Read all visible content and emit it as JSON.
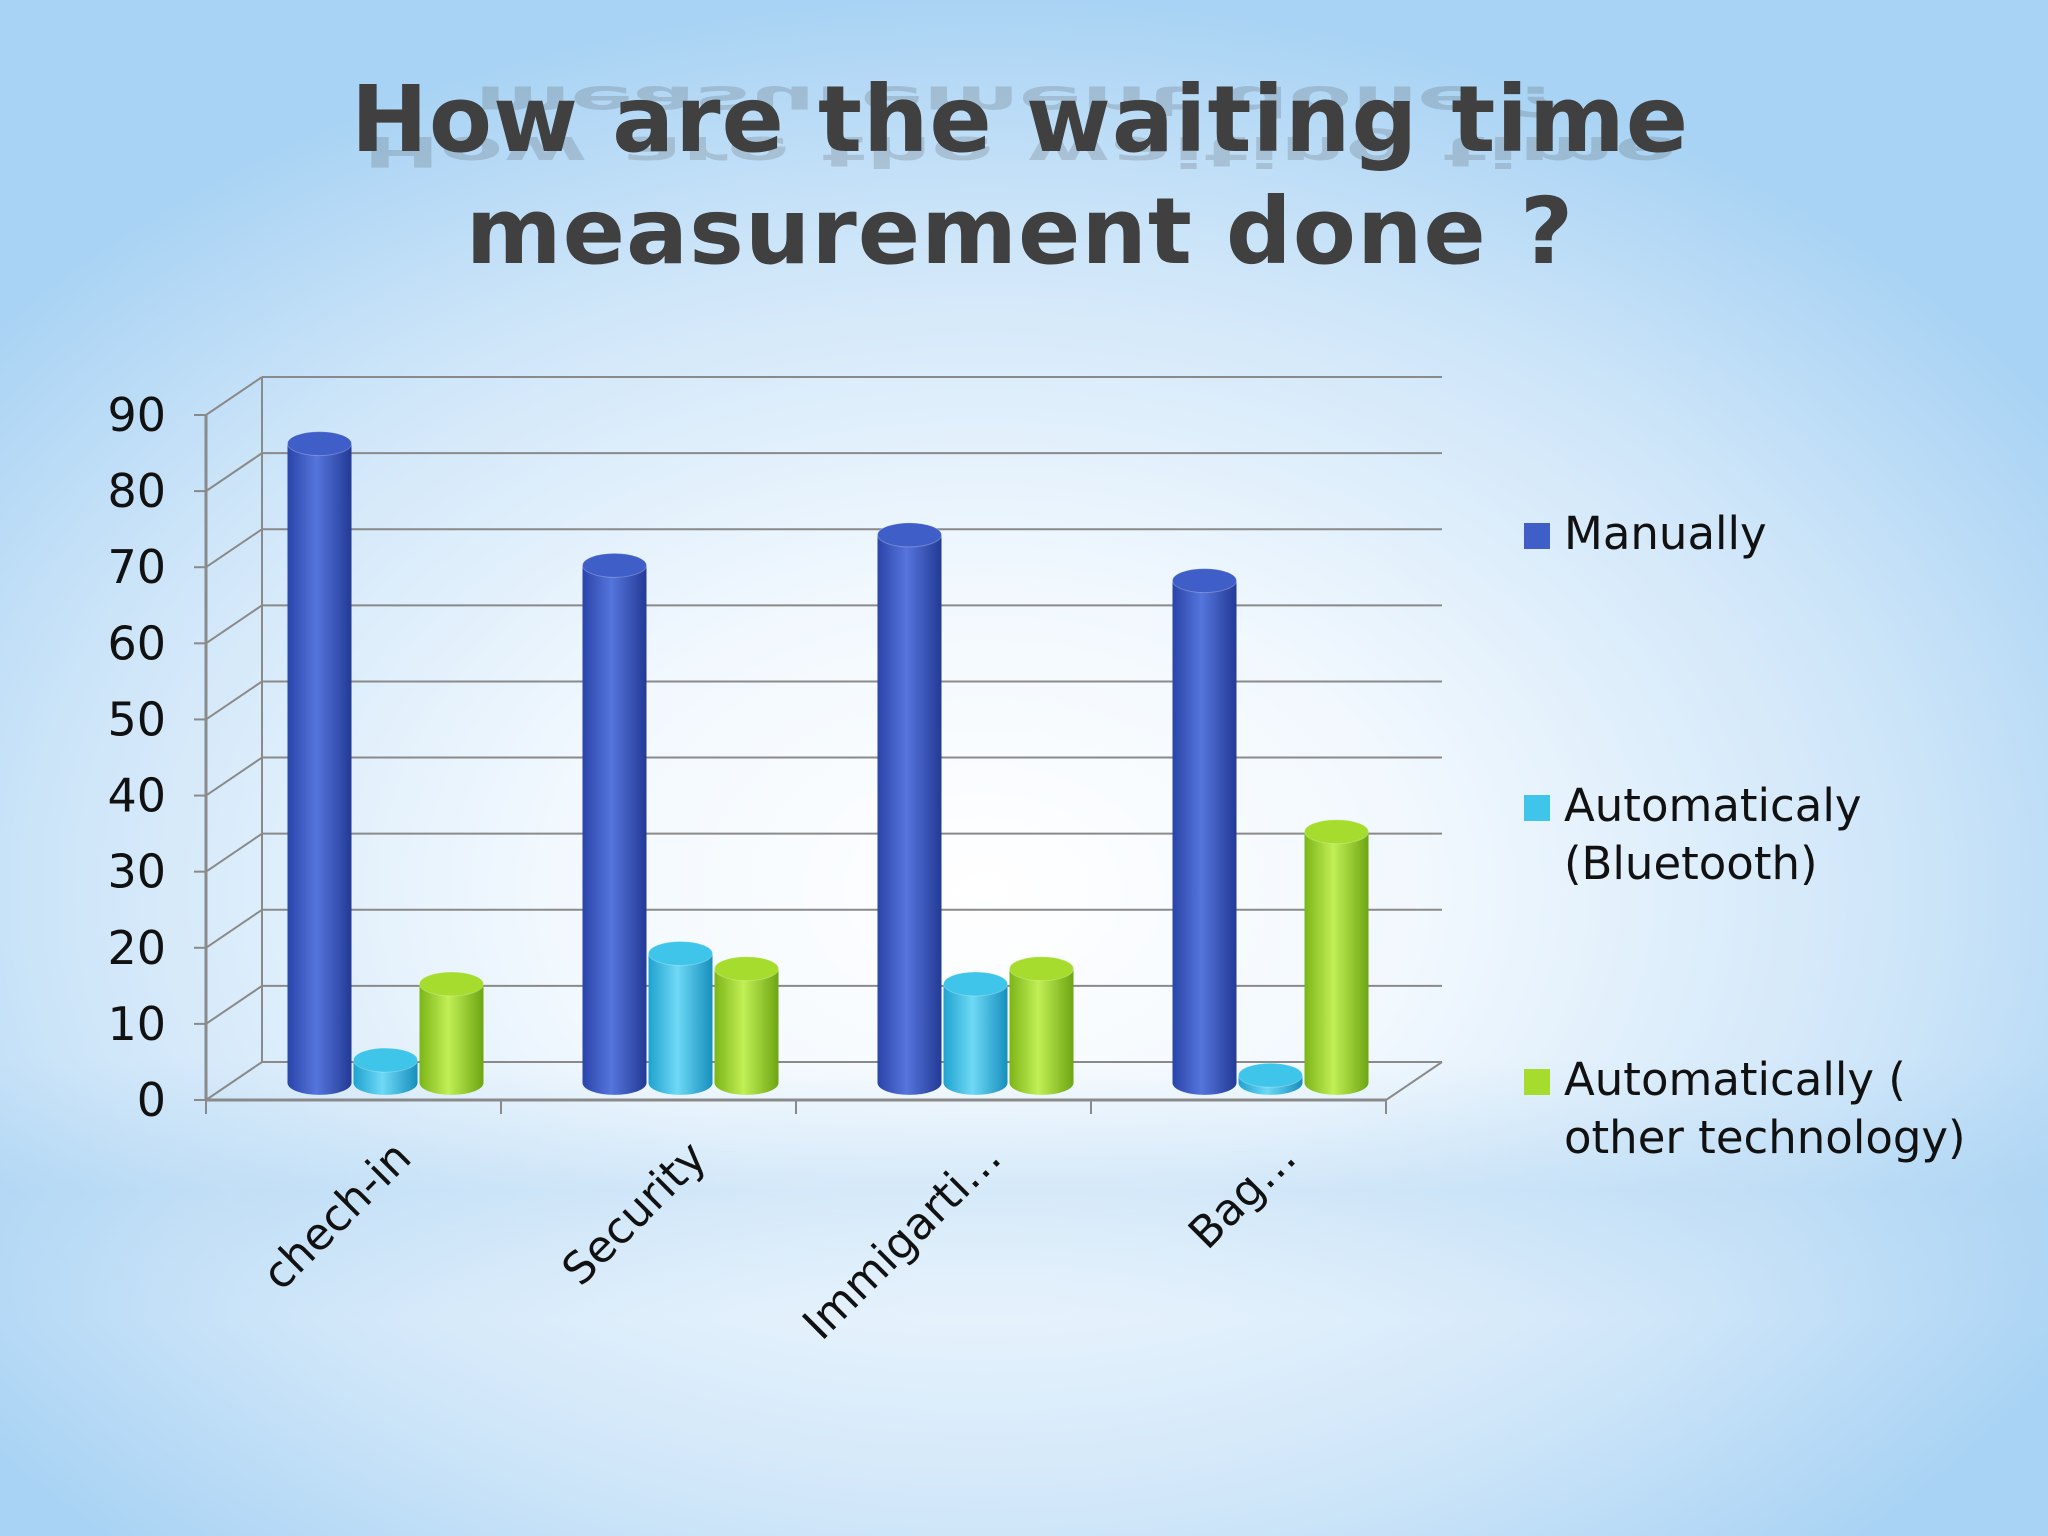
{
  "chart_data": {
    "type": "bar",
    "title": "How are the waiting time measurement done ?",
    "categories": [
      "chech-in",
      "Security",
      "Immigarti…",
      "Bag…"
    ],
    "series": [
      {
        "name": "Manually",
        "color": "#3f5ec7",
        "values": [
          84,
          68,
          72,
          66
        ]
      },
      {
        "name": "Automaticaly (Bluetooth)",
        "color": "#3fc4ea",
        "values": [
          3,
          17,
          13,
          1
        ]
      },
      {
        "name": "Automatically ( other technology)",
        "color": "#a6dc2e",
        "values": [
          13,
          15,
          15,
          33
        ]
      }
    ],
    "y_ticks": [
      "0",
      "10",
      "20",
      "30",
      "40",
      "50",
      "60",
      "70",
      "80",
      "90"
    ],
    "ylim": [
      0,
      90
    ],
    "grid": true,
    "legend_position": "right",
    "xlabel": "",
    "ylabel": ""
  }
}
